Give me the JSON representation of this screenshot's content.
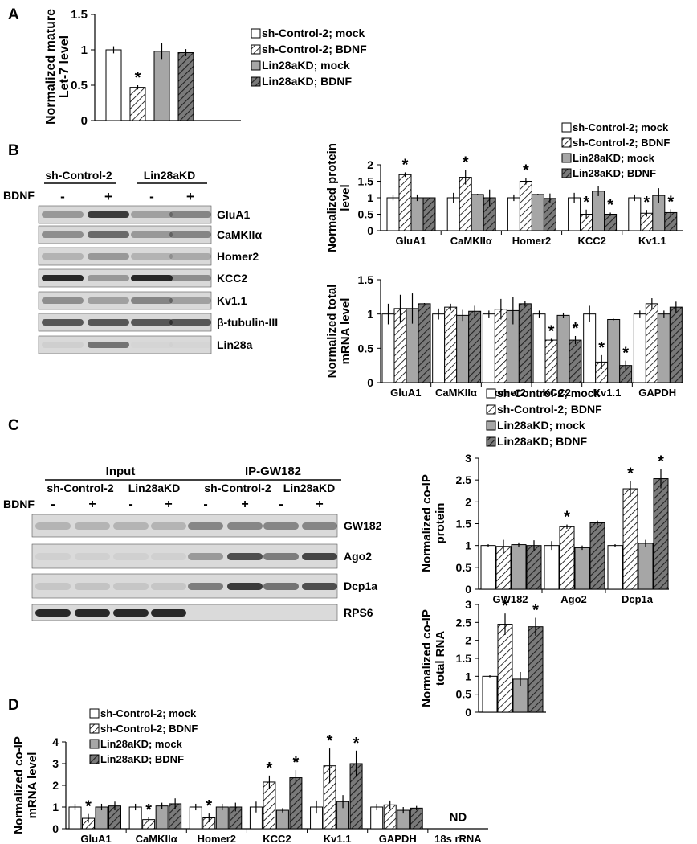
{
  "colors": {
    "mock_ctrl": "#ffffff",
    "bdnf_ctrl": "hatch-light",
    "mock_kd": "#a6a6a6",
    "bdnf_kd": "hatch-dark"
  },
  "legend": [
    "sh-Control-2; mock",
    "sh-Control-2; BDNF",
    "Lin28aKD; mock",
    "Lin28aKD; BDNF"
  ],
  "panels": {
    "A": "A",
    "B": "B",
    "C": "C",
    "D": "D"
  },
  "blotB": {
    "groups": [
      "sh-Control-2",
      "Lin28aKD"
    ],
    "treatment_label": "BDNF",
    "lanes": [
      "-",
      "+",
      "-",
      "+"
    ],
    "bands": [
      "GluA1",
      "CaMKIIα",
      "Homer2",
      "KCC2",
      "Kv1.1",
      "β-tubulin-III",
      "Lin28a"
    ]
  },
  "blotC": {
    "input_label": "Input",
    "ip_label": "IP-GW182",
    "groups": [
      "sh-Control-2",
      "Lin28aKD",
      "sh-Control-2",
      "Lin28aKD"
    ],
    "treatment_label": "BDNF",
    "lanes": [
      "-",
      "+",
      "-",
      "+",
      "-",
      "+",
      "-",
      "+"
    ],
    "bands": [
      "GW182",
      "Ago2",
      "Dcp1a",
      "RPS6"
    ]
  },
  "chart_data": [
    {
      "id": "A",
      "type": "bar",
      "ylabel": "Normalized mature Let-7 level",
      "categories": [
        ""
      ],
      "ylim": [
        0,
        1.5
      ],
      "yticks": [
        0,
        0.5,
        1,
        1.5
      ],
      "yticklabels": [
        "0",
        "0.5",
        "1",
        "1.5"
      ],
      "series": [
        {
          "name": "sh-Control-2; mock",
          "values": [
            1.0
          ],
          "errors": [
            0.05
          ]
        },
        {
          "name": "sh-Control-2; BDNF",
          "values": [
            0.47
          ],
          "errors": [
            0.03
          ]
        },
        {
          "name": "Lin28aKD; mock",
          "values": [
            0.98
          ],
          "errors": [
            0.12
          ]
        },
        {
          "name": "Lin28aKD; BDNF",
          "values": [
            0.96
          ],
          "errors": [
            0.05
          ]
        }
      ],
      "stars": [
        [
          0,
          1
        ]
      ],
      "legend_position": "right"
    },
    {
      "id": "B1",
      "type": "bar",
      "ylabel": "Normalized protein level",
      "categories": [
        "GluA1",
        "CaMKIIα",
        "Homer2",
        "KCC2",
        "Kv1.1"
      ],
      "ylim": [
        0,
        2
      ],
      "yticks": [
        0,
        0.5,
        1,
        1.5,
        2
      ],
      "yticklabels": [
        "0",
        "0.5",
        "1",
        "1.5",
        "2"
      ],
      "series": [
        {
          "name": "sh-Control-2; mock",
          "values": [
            1.0,
            1.0,
            1.0,
            1.0,
            1.0
          ],
          "errors": [
            0.08,
            0.15,
            0.1,
            0.15,
            0.1
          ]
        },
        {
          "name": "sh-Control-2; BDNF",
          "values": [
            1.7,
            1.62,
            1.5,
            0.5,
            0.53
          ],
          "errors": [
            0.07,
            0.22,
            0.1,
            0.14,
            0.1
          ]
        },
        {
          "name": "Lin28aKD; mock",
          "values": [
            1.0,
            1.1,
            1.1,
            1.2,
            1.07
          ],
          "errors": [
            0.1,
            0.02,
            0.02,
            0.15,
            0.22
          ]
        },
        {
          "name": "Lin28aKD; BDNF",
          "values": [
            1.0,
            1.0,
            0.98,
            0.5,
            0.55
          ],
          "errors": [
            0.0,
            0.25,
            0.15,
            0.05,
            0.1
          ]
        }
      ],
      "stars": [
        [
          0,
          1
        ],
        [
          1,
          1
        ],
        [
          2,
          1
        ],
        [
          3,
          1
        ],
        [
          3,
          3
        ],
        [
          4,
          1
        ],
        [
          4,
          3
        ]
      ],
      "legend_position": "top"
    },
    {
      "id": "B2",
      "type": "bar",
      "ylabel": "Normalized total mRNA level",
      "categories": [
        "GluA1",
        "CaMKIIα",
        "Homer2",
        "KCC2",
        "Kv1.1",
        "GAPDH"
      ],
      "ylim": [
        0,
        1.5
      ],
      "yticks": [
        0,
        0.5,
        1,
        1.5
      ],
      "yticklabels": [
        "0",
        "0.5",
        "1",
        "1.5"
      ],
      "series": [
        {
          "name": "sh-Control-2; mock",
          "values": [
            1.0,
            1.0,
            1.0,
            1.0,
            1.0,
            1.0
          ],
          "errors": [
            0.15,
            0.08,
            0.05,
            0.05,
            0.12,
            0.05
          ]
        },
        {
          "name": "sh-Control-2; BDNF",
          "values": [
            1.08,
            1.1,
            1.07,
            0.62,
            0.3,
            1.15
          ],
          "errors": [
            0.2,
            0.05,
            0.15,
            0.02,
            0.1,
            0.08
          ]
        },
        {
          "name": "Lin28aKD; mock",
          "values": [
            1.08,
            0.98,
            1.05,
            0.98,
            0.92,
            1.0
          ],
          "errors": [
            0.22,
            0.08,
            0.2,
            0.04,
            0.01,
            0.05
          ]
        },
        {
          "name": "Lin28aKD; BDNF",
          "values": [
            1.15,
            1.04,
            1.15,
            0.62,
            0.25,
            1.1
          ],
          "errors": [
            0.01,
            0.08,
            0.04,
            0.06,
            0.07,
            0.08
          ]
        }
      ],
      "stars": [
        [
          3,
          1
        ],
        [
          3,
          3
        ],
        [
          4,
          1
        ],
        [
          4,
          3
        ]
      ]
    },
    {
      "id": "C1",
      "type": "bar",
      "ylabel": "Normalized co-IP protein",
      "categories": [
        "GW182",
        "Ago2",
        "Dcp1a"
      ],
      "ylim": [
        0,
        3
      ],
      "yticks": [
        0,
        0.5,
        1,
        1.5,
        2,
        2.5,
        3
      ],
      "yticklabels": [
        "0",
        "0.5",
        "1",
        "1.5",
        "2",
        "2.5",
        "3"
      ],
      "series": [
        {
          "name": "sh-Control-2; mock",
          "values": [
            1.0,
            1.0,
            1.0
          ],
          "errors": [
            0.03,
            0.1,
            0.03
          ]
        },
        {
          "name": "sh-Control-2; BDNF",
          "values": [
            0.98,
            1.43,
            2.3
          ],
          "errors": [
            0.15,
            0.05,
            0.18
          ]
        },
        {
          "name": "Lin28aKD; mock",
          "values": [
            1.02,
            0.95,
            1.05
          ],
          "errors": [
            0.05,
            0.05,
            0.08
          ]
        },
        {
          "name": "Lin28aKD; BDNF",
          "values": [
            1.0,
            1.52,
            2.53
          ],
          "errors": [
            0.12,
            0.05,
            0.22
          ]
        }
      ],
      "stars": [
        [
          1,
          1
        ],
        [
          2,
          1
        ],
        [
          2,
          3
        ]
      ],
      "legend_position": "top"
    },
    {
      "id": "C2",
      "type": "bar",
      "ylabel": "Normalized co-IP total RNA",
      "categories": [
        ""
      ],
      "ylim": [
        0,
        3
      ],
      "yticks": [
        0,
        0.5,
        1,
        1.5,
        2,
        2.5,
        3
      ],
      "yticklabels": [
        "0",
        "0.5",
        "1",
        "1.5",
        "2",
        "2.5",
        "3"
      ],
      "series": [
        {
          "name": "sh-Control-2; mock",
          "values": [
            1.0
          ],
          "errors": [
            0.03
          ]
        },
        {
          "name": "sh-Control-2; BDNF",
          "values": [
            2.45
          ],
          "errors": [
            0.3
          ]
        },
        {
          "name": "Lin28aKD; mock",
          "values": [
            0.92
          ],
          "errors": [
            0.2
          ]
        },
        {
          "name": "Lin28aKD; BDNF",
          "values": [
            2.38
          ],
          "errors": [
            0.25
          ]
        }
      ],
      "stars": [
        [
          0,
          1
        ],
        [
          0,
          3
        ]
      ]
    },
    {
      "id": "D",
      "type": "bar",
      "ylabel": "Normalized co-IP mRNA level",
      "categories": [
        "GluA1",
        "CaMKIIα",
        "Homer2",
        "KCC2",
        "Kv1.1",
        "GAPDH",
        "18s rRNA"
      ],
      "ylim": [
        0,
        4
      ],
      "yticks": [
        0,
        1,
        2,
        3,
        4
      ],
      "yticklabels": [
        "0",
        "1",
        "2",
        "3",
        "4"
      ],
      "series": [
        {
          "name": "sh-Control-2; mock",
          "values": [
            1.0,
            1.0,
            1.0,
            1.0,
            1.0,
            1.0,
            null
          ],
          "errors": [
            0.15,
            0.15,
            0.15,
            0.25,
            0.3,
            0.15,
            null
          ]
        },
        {
          "name": "sh-Control-2; BDNF",
          "values": [
            0.48,
            0.42,
            0.5,
            2.15,
            2.9,
            1.1,
            null
          ],
          "errors": [
            0.2,
            0.1,
            0.2,
            0.3,
            0.8,
            0.2,
            null
          ]
        },
        {
          "name": "Lin28aKD; mock",
          "values": [
            1.0,
            1.05,
            1.0,
            0.85,
            1.25,
            0.85,
            null
          ],
          "errors": [
            0.15,
            0.15,
            0.15,
            0.1,
            0.3,
            0.15,
            null
          ]
        },
        {
          "name": "Lin28aKD; BDNF",
          "values": [
            1.05,
            1.15,
            1.0,
            2.35,
            3.0,
            0.95,
            null
          ],
          "errors": [
            0.2,
            0.25,
            0.2,
            0.35,
            0.6,
            0.1,
            null
          ]
        }
      ],
      "stars": [
        [
          0,
          1
        ],
        [
          1,
          1
        ],
        [
          2,
          1
        ],
        [
          3,
          1
        ],
        [
          3,
          3
        ],
        [
          4,
          1
        ],
        [
          4,
          3
        ]
      ],
      "annotation": "ND",
      "legend_position": "top-left"
    }
  ]
}
